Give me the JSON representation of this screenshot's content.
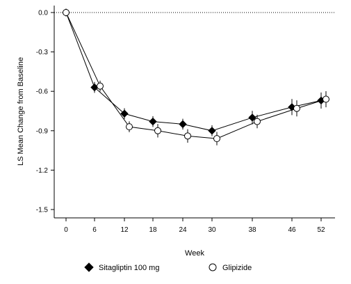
{
  "chart_data": {
    "type": "line",
    "title": "",
    "xlabel": "Week",
    "ylabel": "LS Mean Change from Baseline",
    "x_ticks": [
      0,
      6,
      12,
      18,
      24,
      30,
      38,
      46,
      52
    ],
    "x_tick_labels": [
      "0",
      "6",
      "12",
      "18",
      "24",
      "30",
      "38",
      "46",
      "52"
    ],
    "y_ticks": [
      0.0,
      -0.3,
      -0.6,
      -0.9,
      -1.2,
      -1.5
    ],
    "y_tick_labels": [
      "0.0",
      "-0.3",
      "-0.6",
      "-0.9",
      "-1.2",
      "-1.5"
    ],
    "ylim": [
      -1.55,
      0.03
    ],
    "reference_line_y": 0,
    "legend_position": "bottom",
    "series": [
      {
        "name": "Sitagliptin 100 mg",
        "marker": "filled-diamond",
        "color": "#000000",
        "x": [
          0,
          6,
          12,
          18,
          24,
          30,
          38,
          46,
          52
        ],
        "y": [
          0.0,
          -0.57,
          -0.77,
          -0.83,
          -0.85,
          -0.9,
          -0.8,
          -0.72,
          -0.67
        ],
        "err": [
          0,
          0.02,
          0.02,
          0.02,
          0.02,
          0.02,
          0.03,
          0.04,
          0.04
        ]
      },
      {
        "name": "Glipizide",
        "marker": "open-circle",
        "color": "#000000",
        "x": [
          0,
          6,
          12,
          18,
          24,
          30,
          38,
          46,
          52
        ],
        "y": [
          0.0,
          -0.56,
          -0.87,
          -0.9,
          -0.94,
          -0.96,
          -0.83,
          -0.73,
          -0.66
        ],
        "err": [
          0,
          0.02,
          0.02,
          0.03,
          0.03,
          0.03,
          0.03,
          0.04,
          0.04
        ]
      }
    ]
  }
}
